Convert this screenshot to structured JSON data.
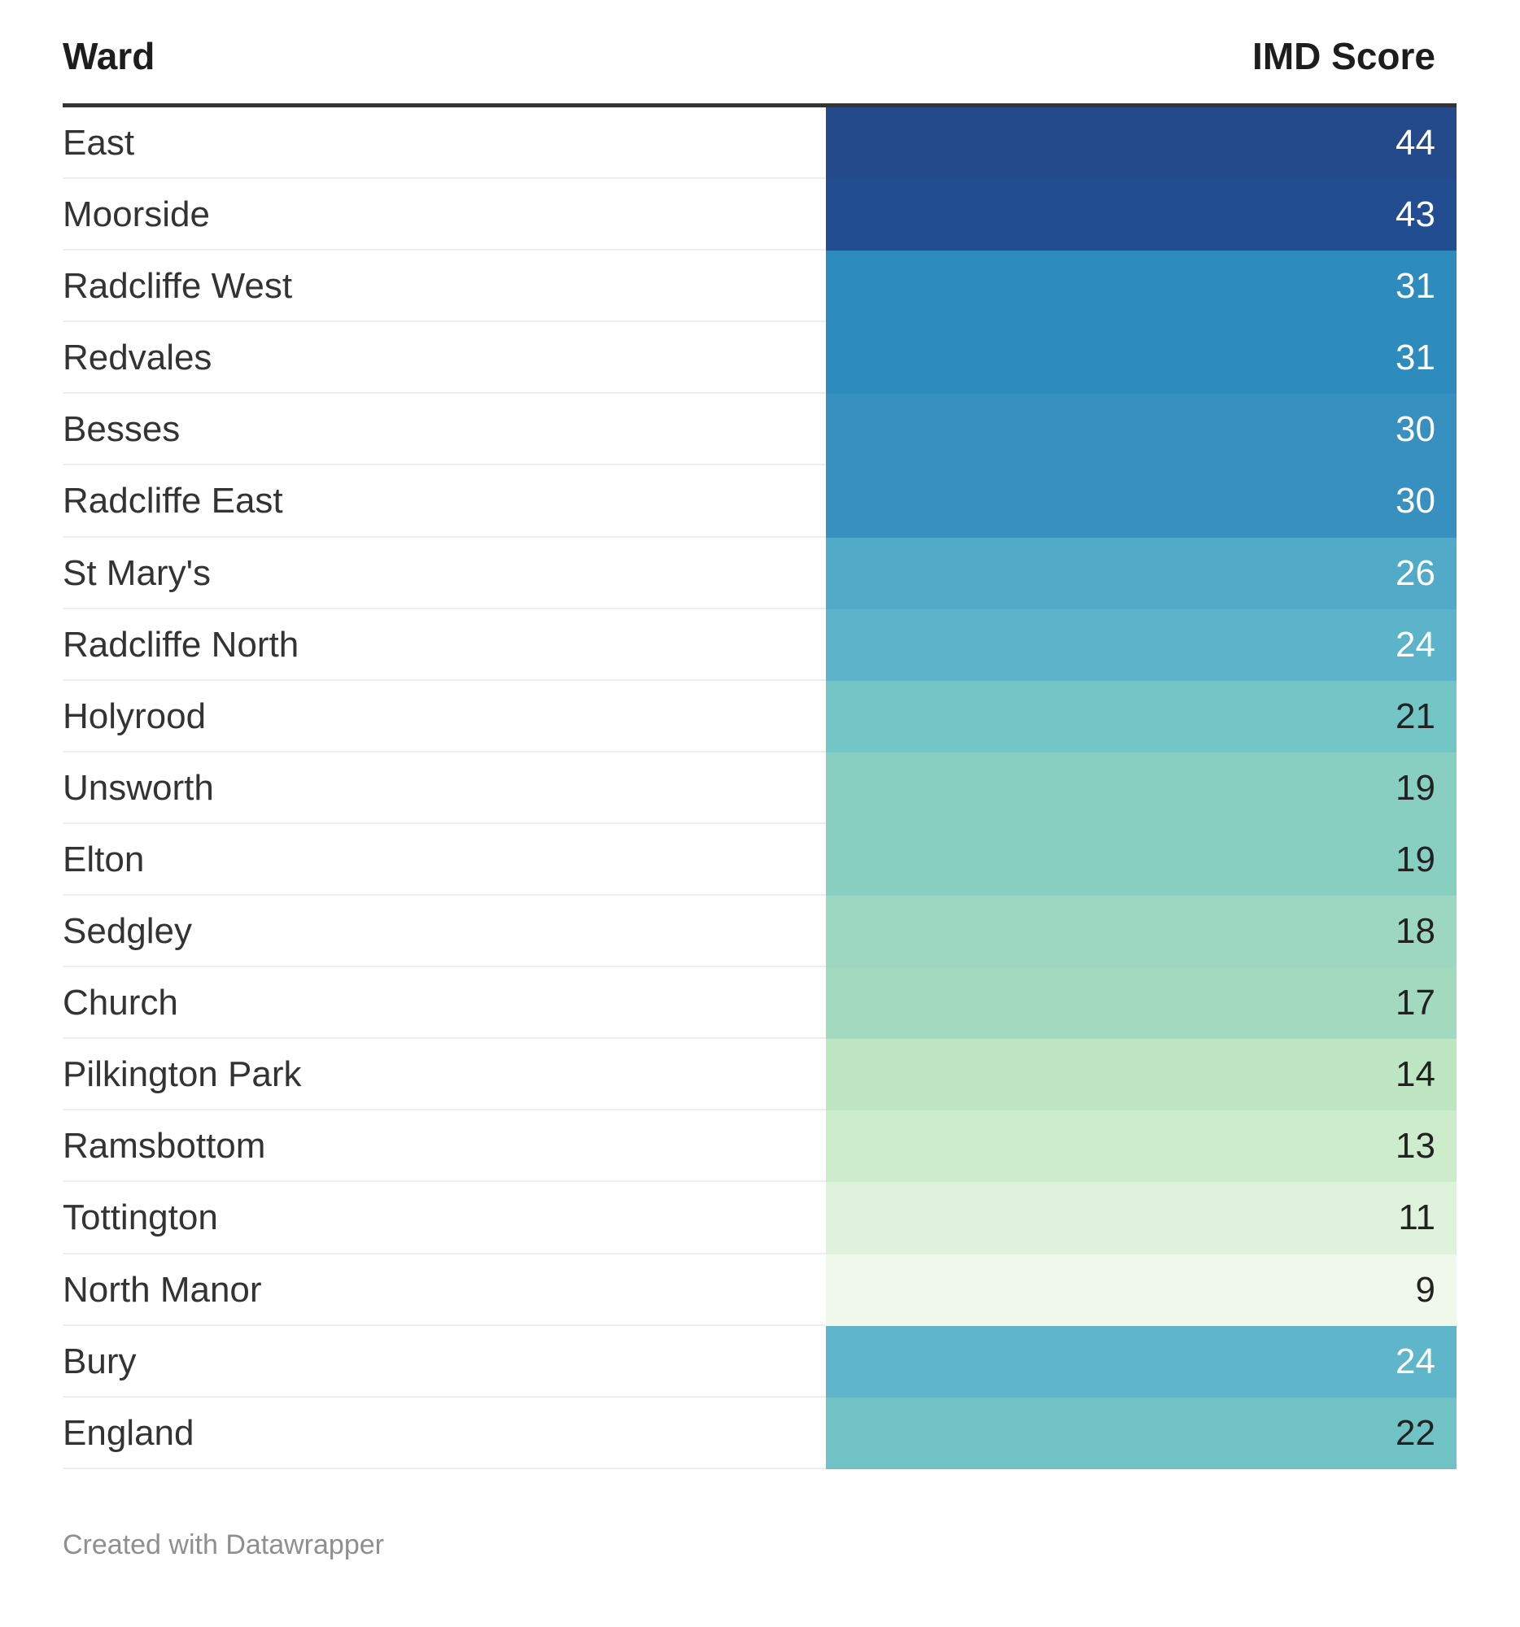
{
  "chart_data": {
    "type": "table",
    "columns": [
      "Ward",
      "IMD Score"
    ],
    "rows": [
      {
        "ward": "East",
        "score": "44",
        "color": "#244a8c",
        "text_color": "#ffffff"
      },
      {
        "ward": "Moorside",
        "score": "43",
        "color": "#234d91",
        "text_color": "#ffffff"
      },
      {
        "ward": "Radcliffe West",
        "score": "31",
        "color": "#2e8bbd",
        "text_color": "#ffffff"
      },
      {
        "ward": "Redvales",
        "score": "31",
        "color": "#2e8bbd",
        "text_color": "#ffffff"
      },
      {
        "ward": "Besses",
        "score": "30",
        "color": "#3790bf",
        "text_color": "#ffffff"
      },
      {
        "ward": "Radcliffe East",
        "score": "30",
        "color": "#3790bf",
        "text_color": "#ffffff"
      },
      {
        "ward": "St Mary's",
        "score": "26",
        "color": "#50aac8",
        "text_color": "#ffffff"
      },
      {
        "ward": "Radcliffe North",
        "score": "24",
        "color": "#5db3c9",
        "text_color": "#ffffff"
      },
      {
        "ward": "Holyrood",
        "score": "21",
        "color": "#74c5c5",
        "text_color": "#222222"
      },
      {
        "ward": "Unsworth",
        "score": "19",
        "color": "#89cfc1",
        "text_color": "#222222"
      },
      {
        "ward": "Elton",
        "score": "19",
        "color": "#89cfc1",
        "text_color": "#222222"
      },
      {
        "ward": "Sedgley",
        "score": "18",
        "color": "#9ed7c1",
        "text_color": "#222222"
      },
      {
        "ward": "Church",
        "score": "17",
        "color": "#a3dabf",
        "text_color": "#222222"
      },
      {
        "ward": "Pilkington Park",
        "score": "14",
        "color": "#bfe6c2",
        "text_color": "#222222"
      },
      {
        "ward": "Ramsbottom",
        "score": "13",
        "color": "#cdeccc",
        "text_color": "#222222"
      },
      {
        "ward": "Tottington",
        "score": "11",
        "color": "#dff2db",
        "text_color": "#222222"
      },
      {
        "ward": "North Manor",
        "score": "9",
        "color": "#eff8ea",
        "text_color": "#222222"
      },
      {
        "ward": "Bury",
        "score": "24",
        "color": "#5fb5c9",
        "text_color": "#ffffff"
      },
      {
        "ward": "England",
        "score": "22",
        "color": "#70c2c5",
        "text_color": "#222222"
      }
    ]
  },
  "footer": "Created with Datawrapper"
}
